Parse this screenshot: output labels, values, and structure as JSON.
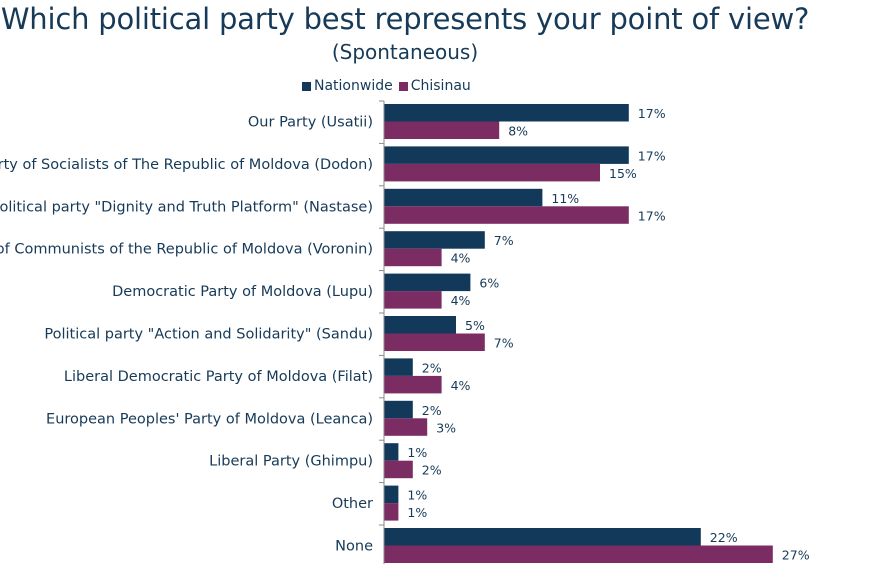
{
  "title": "Which political party best represents your point of view?",
  "subtitle": "(Spontaneous)",
  "colors": {
    "nationwide": "#12395a",
    "chisinau": "#7b2c63",
    "text": "#163a58"
  },
  "chart_data": {
    "type": "bar",
    "orientation": "horizontal",
    "title": "Which political party best represents your point of view?",
    "subtitle": "(Spontaneous)",
    "categories": [
      "Our Party (Usatii)",
      "Party of Socialists of The Republic of Moldova (Dodon)",
      "Political party \"Dignity and Truth Platform\" (Nastase)",
      "Party of Communists  of the Republic of Moldova (Voronin)",
      "Democratic Party of Moldova (Lupu)",
      "Political party \"Action and Solidarity\" (Sandu)",
      "Liberal Democratic Party of Moldova (Filat)",
      "European Peoples' Party of Moldova (Leanca)",
      "Liberal Party (Ghimpu)",
      "Other",
      "None"
    ],
    "series": [
      {
        "name": "Nationwide",
        "values": [
          17,
          17,
          11,
          7,
          6,
          5,
          2,
          2,
          1,
          1,
          22
        ],
        "labels": [
          "17%",
          "17%",
          "11%",
          "7%",
          "6%",
          "5%",
          "2%",
          "2%",
          "1%",
          "1%",
          "22%"
        ]
      },
      {
        "name": "Chisinau",
        "values": [
          8,
          15,
          17,
          4,
          4,
          7,
          4,
          3,
          2,
          1,
          27
        ],
        "labels": [
          "8%",
          "15%",
          "17%",
          "4%",
          "4%",
          "7%",
          "4%",
          "3%",
          "2%",
          "1%",
          "27%"
        ]
      }
    ],
    "value_unit": "%",
    "xlim": [
      0,
      27
    ],
    "legend_position": "top",
    "grid": false
  }
}
